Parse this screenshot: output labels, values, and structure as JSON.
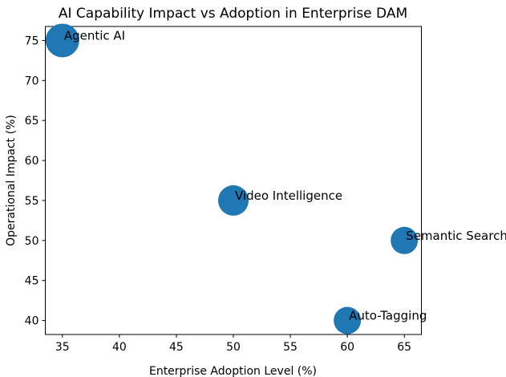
{
  "chart_data": {
    "type": "scatter",
    "title": "AI Capability Impact vs Adoption in Enterprise DAM",
    "xlabel": "Enterprise Adoption Level (%)",
    "ylabel": "Operational Impact (%)",
    "xlim": [
      33.5,
      66.5
    ],
    "ylim": [
      38.25,
      76.75
    ],
    "xticks": [
      35,
      40,
      45,
      50,
      55,
      60,
      65
    ],
    "yticks": [
      40,
      45,
      50,
      55,
      60,
      65,
      70,
      75
    ],
    "grid": false,
    "legend": "none",
    "marker_color": "#1f77b4",
    "background_color": "#ffffff",
    "axis_color": "#000000",
    "points": [
      {
        "label": "Agentic AI",
        "x": 35,
        "y": 75,
        "marker_radius_px": 21
      },
      {
        "label": "Video Intelligence",
        "x": 50,
        "y": 55,
        "marker_radius_px": 19
      },
      {
        "label": "Semantic Search",
        "x": 65,
        "y": 50,
        "marker_radius_px": 17
      },
      {
        "label": "Auto-Tagging",
        "x": 60,
        "y": 40,
        "marker_radius_px": 17
      }
    ]
  }
}
